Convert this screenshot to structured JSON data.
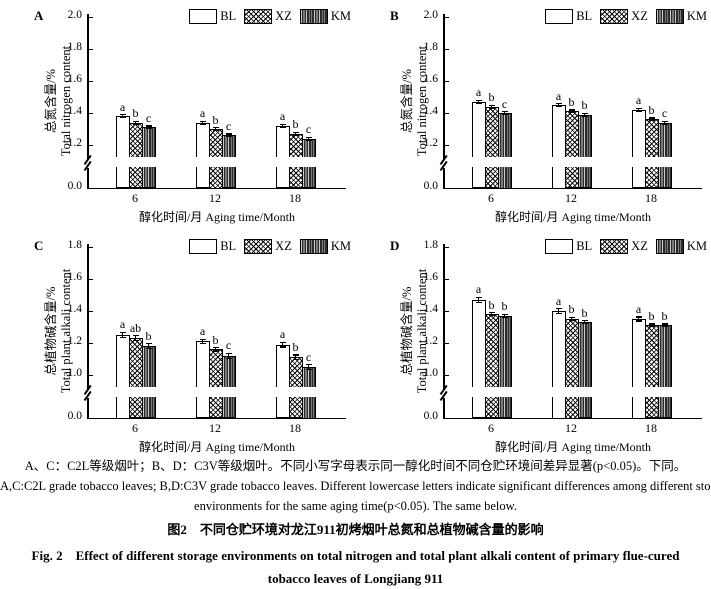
{
  "colors": {
    "ink": "#000000",
    "background": "#ffffff",
    "km_fill": "#2b2b2b"
  },
  "notes": {
    "line1": "A、C：C2L等级烟叶；B、D：C3V等级烟叶。不同小写字母表示同一醇化时间不同仓贮环境间差异显著(p<0.05)。下同。",
    "line2": "A,C:C2L grade tobacco leaves; B,D:C3V grade tobacco leaves. Different lowercase letters indicate significant differences among different storage",
    "line3": "environments for the same aging time(p<0.05). The same below."
  },
  "caption": {
    "cn": "图2　不同仓贮环境对龙江911初烤烟叶总氮和总植物碱含量的影响",
    "en1": "Fig. 2　Effect of different storage environments on total nitrogen and total plant alkali content of primary flue-cured",
    "en2": "tobacco leaves of Longjiang 911"
  },
  "chart_data": [
    {
      "type": "bar",
      "panel_label": "A",
      "ylabel_cn": "总氮含量/%",
      "ylabel_en": "Total nitrogen content",
      "xlabel": "醇化时间/月 Aging time/Month",
      "categories": [
        "6",
        "12",
        "18"
      ],
      "yticks": [
        0.0,
        1.2,
        1.4,
        1.6,
        1.8,
        2.0
      ],
      "ylim": [
        0,
        2.0
      ],
      "axis_break_between": [
        0.0,
        1.2
      ],
      "legend_position": "top-right",
      "grid": false,
      "series": [
        {
          "name": "BL",
          "pattern": "white",
          "values": [
            1.38,
            1.34,
            1.32
          ],
          "errors": [
            0.008,
            0.008,
            0.008
          ],
          "letters": [
            "a",
            "a",
            "a"
          ]
        },
        {
          "name": "XZ",
          "pattern": "crosshatch",
          "values": [
            1.34,
            1.3,
            1.27
          ],
          "errors": [
            0.008,
            0.008,
            0.008
          ],
          "letters": [
            "b",
            "b",
            "b"
          ]
        },
        {
          "name": "KM",
          "pattern": "dark-vertical",
          "values": [
            1.31,
            1.26,
            1.24
          ],
          "errors": [
            0.008,
            0.008,
            0.008
          ],
          "letters": [
            "c",
            "c",
            "c"
          ]
        }
      ]
    },
    {
      "type": "bar",
      "panel_label": "B",
      "ylabel_cn": "总氮含量/%",
      "ylabel_en": "Total nitrogen content",
      "xlabel": "醇化时间/月 Aging time/Month",
      "categories": [
        "6",
        "12",
        "18"
      ],
      "yticks": [
        0.0,
        1.2,
        1.4,
        1.6,
        1.8,
        2.0
      ],
      "ylim": [
        0,
        2.0
      ],
      "axis_break_between": [
        0.0,
        1.2
      ],
      "legend_position": "top-right",
      "grid": false,
      "series": [
        {
          "name": "BL",
          "pattern": "white",
          "values": [
            1.47,
            1.45,
            1.42
          ],
          "errors": [
            0.008,
            0.008,
            0.008
          ],
          "letters": [
            "a",
            "a",
            "a"
          ]
        },
        {
          "name": "XZ",
          "pattern": "crosshatch",
          "values": [
            1.44,
            1.41,
            1.36
          ],
          "errors": [
            0.008,
            0.008,
            0.008
          ],
          "letters": [
            "b",
            "b",
            "b"
          ]
        },
        {
          "name": "KM",
          "pattern": "dark-vertical",
          "values": [
            1.4,
            1.39,
            1.34
          ],
          "errors": [
            0.008,
            0.008,
            0.008
          ],
          "letters": [
            "c",
            "b",
            "c"
          ]
        }
      ]
    },
    {
      "type": "bar",
      "panel_label": "C",
      "ylabel_cn": "总植物碱含量/%",
      "ylabel_en": "Total plant alkali content",
      "xlabel": "醇化时间/月 Aging time/Month",
      "categories": [
        "6",
        "12",
        "18"
      ],
      "yticks": [
        0.0,
        1.0,
        1.2,
        1.4,
        1.6,
        1.8
      ],
      "ylim": [
        0,
        1.8
      ],
      "axis_break_between": [
        0.0,
        1.0
      ],
      "legend_position": "top-right",
      "grid": false,
      "series": [
        {
          "name": "BL",
          "pattern": "white",
          "values": [
            1.25,
            1.21,
            1.19
          ],
          "errors": [
            0.018,
            0.012,
            0.015
          ],
          "letters": [
            "a",
            "a",
            "a"
          ]
        },
        {
          "name": "XZ",
          "pattern": "crosshatch",
          "values": [
            1.23,
            1.16,
            1.11
          ],
          "errors": [
            0.015,
            0.01,
            0.015
          ],
          "letters": [
            "ab",
            "b",
            "b"
          ]
        },
        {
          "name": "KM",
          "pattern": "dark-vertical",
          "values": [
            1.18,
            1.12,
            1.05
          ],
          "errors": [
            0.015,
            0.015,
            0.015
          ],
          "letters": [
            "b",
            "c",
            "c"
          ]
        }
      ]
    },
    {
      "type": "bar",
      "panel_label": "D",
      "ylabel_cn": "总植物碱含量/%",
      "ylabel_en": "Total plant alkali content",
      "xlabel": "醇化时间/月 Aging time/Month",
      "categories": [
        "6",
        "12",
        "18"
      ],
      "yticks": [
        0.0,
        1.0,
        1.2,
        1.4,
        1.6,
        1.8
      ],
      "ylim": [
        0,
        1.8
      ],
      "axis_break_between": [
        0.0,
        1.0
      ],
      "legend_position": "top-right",
      "grid": false,
      "series": [
        {
          "name": "BL",
          "pattern": "white",
          "values": [
            1.47,
            1.4,
            1.35
          ],
          "errors": [
            0.015,
            0.015,
            0.012
          ],
          "letters": [
            "a",
            "a",
            "a"
          ]
        },
        {
          "name": "XZ",
          "pattern": "crosshatch",
          "values": [
            1.38,
            1.35,
            1.31
          ],
          "errors": [
            0.008,
            0.01,
            0.008
          ],
          "letters": [
            "b",
            "b",
            "b"
          ]
        },
        {
          "name": "KM",
          "pattern": "dark-vertical",
          "values": [
            1.37,
            1.33,
            1.31
          ],
          "errors": [
            0.01,
            0.008,
            0.008
          ],
          "letters": [
            "b",
            "b",
            "b"
          ]
        }
      ]
    }
  ]
}
